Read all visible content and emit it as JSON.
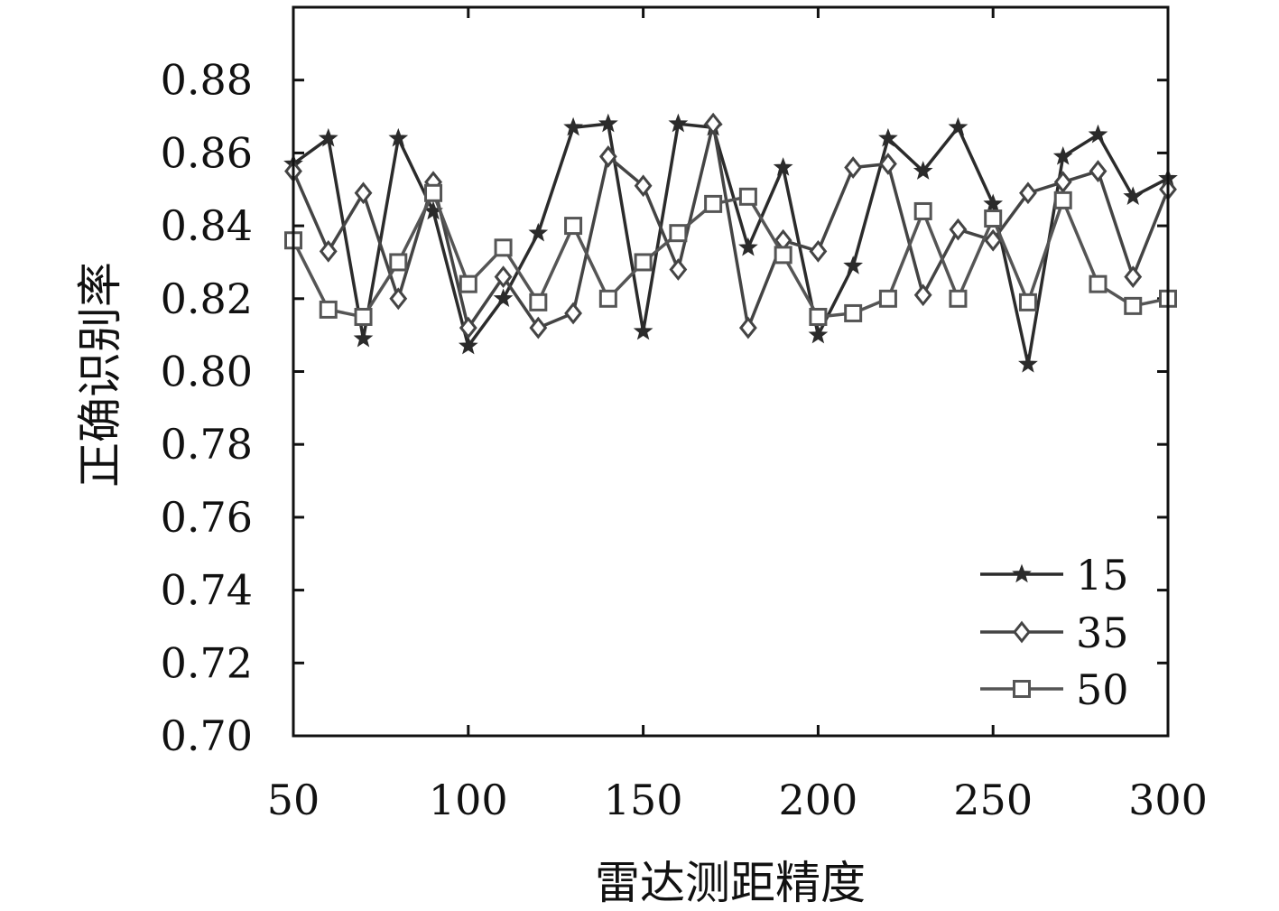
{
  "chart_data": {
    "type": "line",
    "xlabel": "雷达测距精度",
    "ylabel": "正确识别率",
    "xlim": [
      50,
      300
    ],
    "ylim": [
      0.7,
      0.9
    ],
    "xticks": [
      "50",
      "100",
      "150",
      "200",
      "250",
      "300"
    ],
    "yticks": [
      "0.70",
      "0.72",
      "0.74",
      "0.76",
      "0.78",
      "0.80",
      "0.82",
      "0.84",
      "0.86",
      "0.88"
    ],
    "grid": false,
    "legend_position": "bottom-right",
    "x": [
      50,
      60,
      70,
      80,
      90,
      100,
      110,
      120,
      130,
      140,
      150,
      160,
      170,
      180,
      190,
      200,
      210,
      220,
      230,
      240,
      250,
      260,
      270,
      280,
      290,
      300
    ],
    "series": [
      {
        "name": "15",
        "marker": "star",
        "color": "#2b2b2b",
        "values": [
          0.857,
          0.864,
          0.809,
          0.864,
          0.844,
          0.807,
          0.82,
          0.838,
          0.867,
          0.868,
          0.811,
          0.868,
          0.867,
          0.834,
          0.856,
          0.81,
          0.829,
          0.864,
          0.855,
          0.867,
          0.846,
          0.802,
          0.859,
          0.865,
          0.848,
          0.853
        ]
      },
      {
        "name": "35",
        "marker": "diamond",
        "color": "#444444",
        "values": [
          0.855,
          0.833,
          0.849,
          0.82,
          0.852,
          0.812,
          0.826,
          0.812,
          0.816,
          0.859,
          0.851,
          0.828,
          0.868,
          0.812,
          0.836,
          0.833,
          0.856,
          0.857,
          0.821,
          0.839,
          0.836,
          0.849,
          0.852,
          0.855,
          0.826,
          0.85
        ]
      },
      {
        "name": "50",
        "marker": "square",
        "color": "#555555",
        "values": [
          0.836,
          0.817,
          0.815,
          0.83,
          0.849,
          0.824,
          0.834,
          0.819,
          0.84,
          0.82,
          0.83,
          0.838,
          0.846,
          0.848,
          0.832,
          0.815,
          0.816,
          0.82,
          0.844,
          0.82,
          0.842,
          0.819,
          0.847,
          0.824,
          0.818,
          0.82
        ]
      }
    ]
  }
}
